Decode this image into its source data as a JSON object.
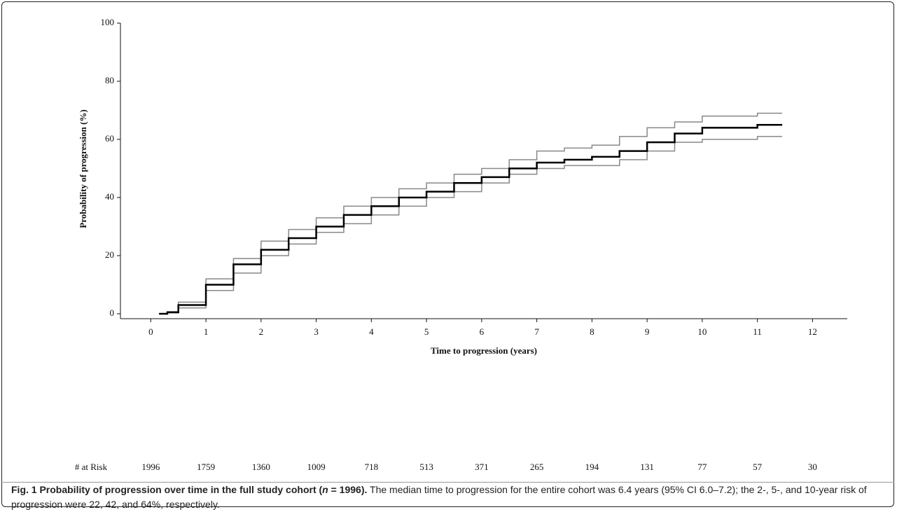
{
  "chart_data": {
    "type": "line",
    "step": true,
    "x_label": "Time to progression (years)",
    "y_label": "Probability of progression (%)",
    "xlim": [
      -0.55,
      12.63
    ],
    "ylim": [
      -1.7,
      100
    ],
    "xticks": [
      0,
      1,
      2,
      3,
      4,
      5,
      6,
      7,
      8,
      9,
      10,
      11,
      12
    ],
    "yticks": [
      0,
      20,
      40,
      60,
      80,
      100
    ],
    "x": [
      0.15,
      0.3,
      0.5,
      1,
      1.5,
      2,
      2.5,
      3,
      3.5,
      4,
      4.5,
      5,
      5.5,
      6,
      6.5,
      7,
      7.5,
      8,
      8.5,
      9,
      9.5,
      10,
      10.5,
      11,
      11.45
    ],
    "series": [
      {
        "color": "#888888",
        "values": [
          0,
          0.3,
          2,
          8,
          14,
          20,
          24,
          28,
          31,
          34,
          37,
          40,
          42,
          45,
          48,
          50,
          51,
          51,
          53,
          56,
          59,
          60,
          60,
          61,
          61
        ]
      },
      {
        "color": "#888888",
        "values": [
          0,
          0.7,
          4,
          12,
          19,
          25,
          29,
          33,
          37,
          40,
          43,
          45,
          48,
          50,
          53,
          56,
          57,
          58,
          61,
          64,
          66,
          68,
          68,
          69,
          69
        ]
      },
      {
        "color": "#000000",
        "values": [
          0,
          0.5,
          3,
          10,
          17,
          22,
          26,
          30,
          34,
          37,
          40,
          42,
          45,
          47,
          50,
          52,
          53,
          54,
          56,
          59,
          62,
          64,
          64,
          65,
          65
        ]
      }
    ],
    "risk_table": {
      "label": "# at Risk",
      "values": [
        1996,
        1759,
        1360,
        1009,
        718,
        513,
        371,
        265,
        194,
        131,
        77,
        57,
        30
      ]
    }
  },
  "caption": {
    "bold": [
      "Fig. 1 Probability of progression over time in the full study cohort (",
      "n",
      " = 1996)."
    ],
    "text": " The median time to progression for the entire cohort was 6.4 years (95% CI 6.0–7.2); the 2-, 5-, and 10-year risk of progression were 22, 42, and 64%, respectively."
  }
}
